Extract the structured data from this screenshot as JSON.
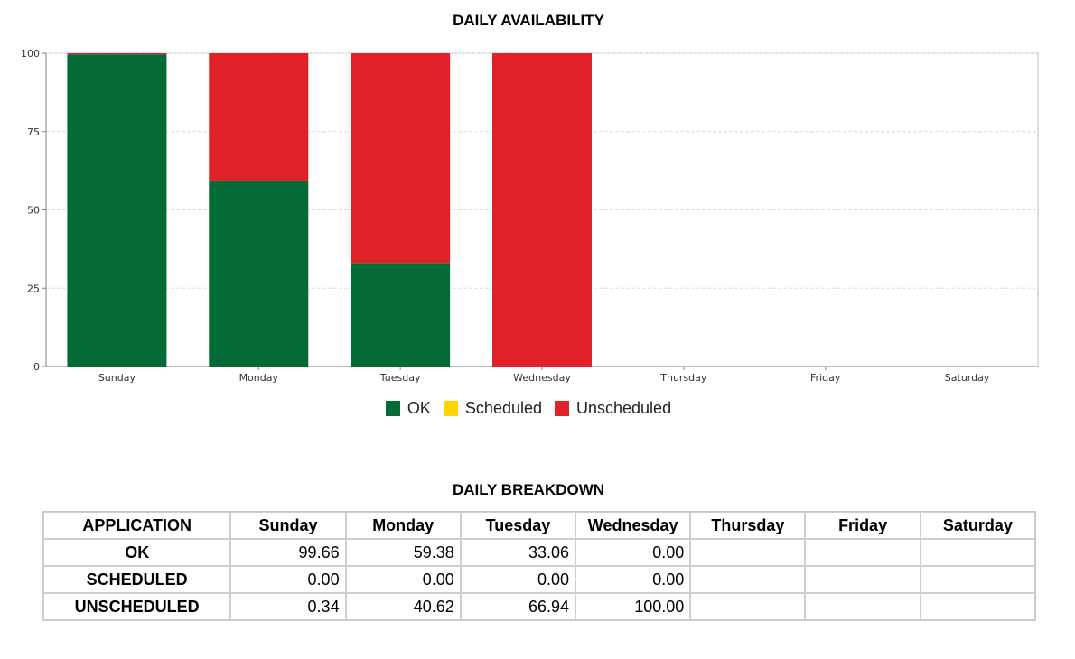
{
  "chart_data": {
    "type": "bar",
    "stacked": true,
    "title": "DAILY AVAILABILITY",
    "categories": [
      "Sunday",
      "Monday",
      "Tuesday",
      "Wednesday",
      "Thursday",
      "Friday",
      "Saturday"
    ],
    "series": [
      {
        "name": "OK",
        "color": "#036b35",
        "values": [
          99.66,
          59.38,
          33.06,
          0.0,
          null,
          null,
          null
        ]
      },
      {
        "name": "Scheduled",
        "color": "#ffd400",
        "values": [
          0.0,
          0.0,
          0.0,
          0.0,
          null,
          null,
          null
        ]
      },
      {
        "name": "Unscheduled",
        "color": "#e02127",
        "values": [
          0.34,
          40.62,
          66.94,
          100.0,
          null,
          null,
          null
        ]
      }
    ],
    "yticks": [
      "0",
      "25",
      "50",
      "75",
      "100"
    ],
    "ylim": [
      0,
      100
    ],
    "xlabel": "",
    "ylabel": "",
    "grid": true,
    "legend_position": "bottom"
  },
  "table": {
    "title": "DAILY BREAKDOWN",
    "columns": [
      "APPLICATION",
      "Sunday",
      "Monday",
      "Tuesday",
      "Wednesday",
      "Thursday",
      "Friday",
      "Saturday"
    ],
    "rows": [
      {
        "label": "OK",
        "cells": [
          "99.66",
          "59.38",
          "33.06",
          "0.00",
          "",
          "",
          ""
        ]
      },
      {
        "label": "SCHEDULED",
        "cells": [
          "0.00",
          "0.00",
          "0.00",
          "0.00",
          "",
          "",
          ""
        ]
      },
      {
        "label": "UNSCHEDULED",
        "cells": [
          "0.34",
          "40.62",
          "66.94",
          "100.00",
          "",
          "",
          ""
        ]
      }
    ]
  }
}
